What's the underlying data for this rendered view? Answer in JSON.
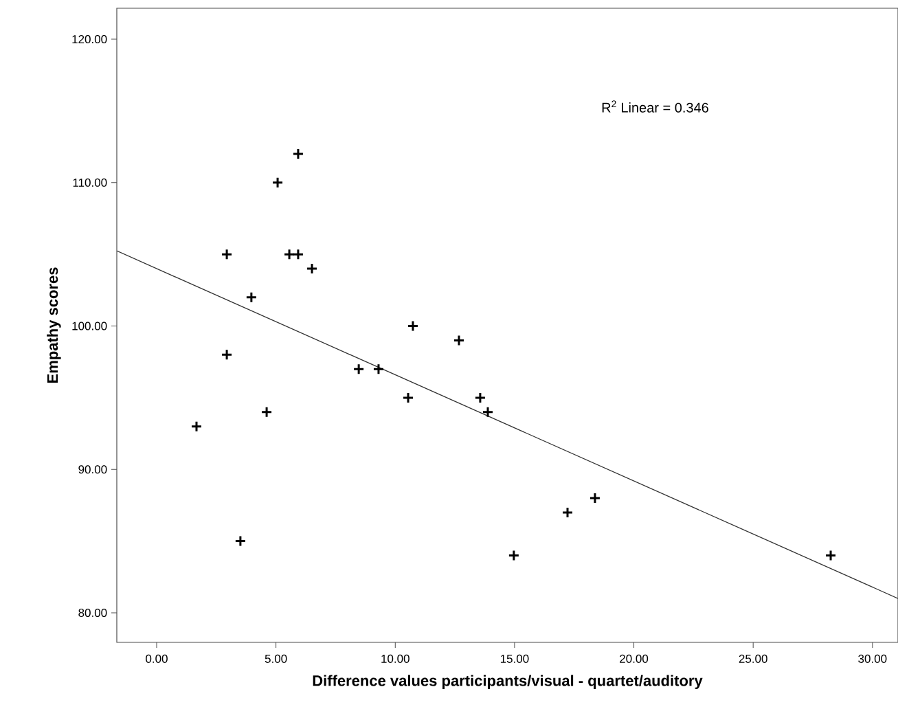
{
  "chart_data": {
    "type": "scatter",
    "xlabel": "Difference values participants/visual - quartet/auditory",
    "ylabel": "Empathy scores",
    "annotations": [
      "R$^{2}$ Linear = 0.346"
    ],
    "xlim": [
      -1.67,
      31.07
    ],
    "ylim": [
      77.94,
      122.16
    ],
    "xticks": [
      {
        "value": 0,
        "label": "0.00"
      },
      {
        "value": 5,
        "label": "5.00"
      },
      {
        "value": 10,
        "label": "10.00"
      },
      {
        "value": 15,
        "label": "15.00"
      },
      {
        "value": 20,
        "label": "20.00"
      },
      {
        "value": 25,
        "label": "25.00"
      },
      {
        "value": 30,
        "label": "30.00"
      }
    ],
    "yticks": [
      {
        "value": 80,
        "label": "80.00"
      },
      {
        "value": 90,
        "label": "90.00"
      },
      {
        "value": 100,
        "label": "100.00"
      },
      {
        "value": 110,
        "label": "110.00"
      },
      {
        "value": 120,
        "label": "120.00"
      }
    ],
    "grid": false,
    "series": [
      {
        "color": "#000000",
        "marker": "cross",
        "x": [
          1.67,
          2.94,
          2.94,
          3.51,
          3.97,
          4.61,
          5.07,
          5.56,
          5.93,
          5.93,
          6.51,
          8.47,
          9.3,
          10.54,
          10.74,
          12.67,
          13.56,
          13.88,
          14.97,
          17.22,
          18.37,
          28.25
        ],
        "values": [
          93,
          105,
          98,
          85,
          102,
          94,
          110,
          105,
          105,
          112,
          104,
          97,
          97,
          95,
          100,
          99,
          95,
          94,
          84,
          87,
          88,
          84
        ]
      },
      {
        "type": "line",
        "color": "#333333",
        "line_style": "solid",
        "x": [
          -1.67,
          31.07
        ],
        "values": [
          105.24,
          81.0
        ]
      }
    ]
  }
}
